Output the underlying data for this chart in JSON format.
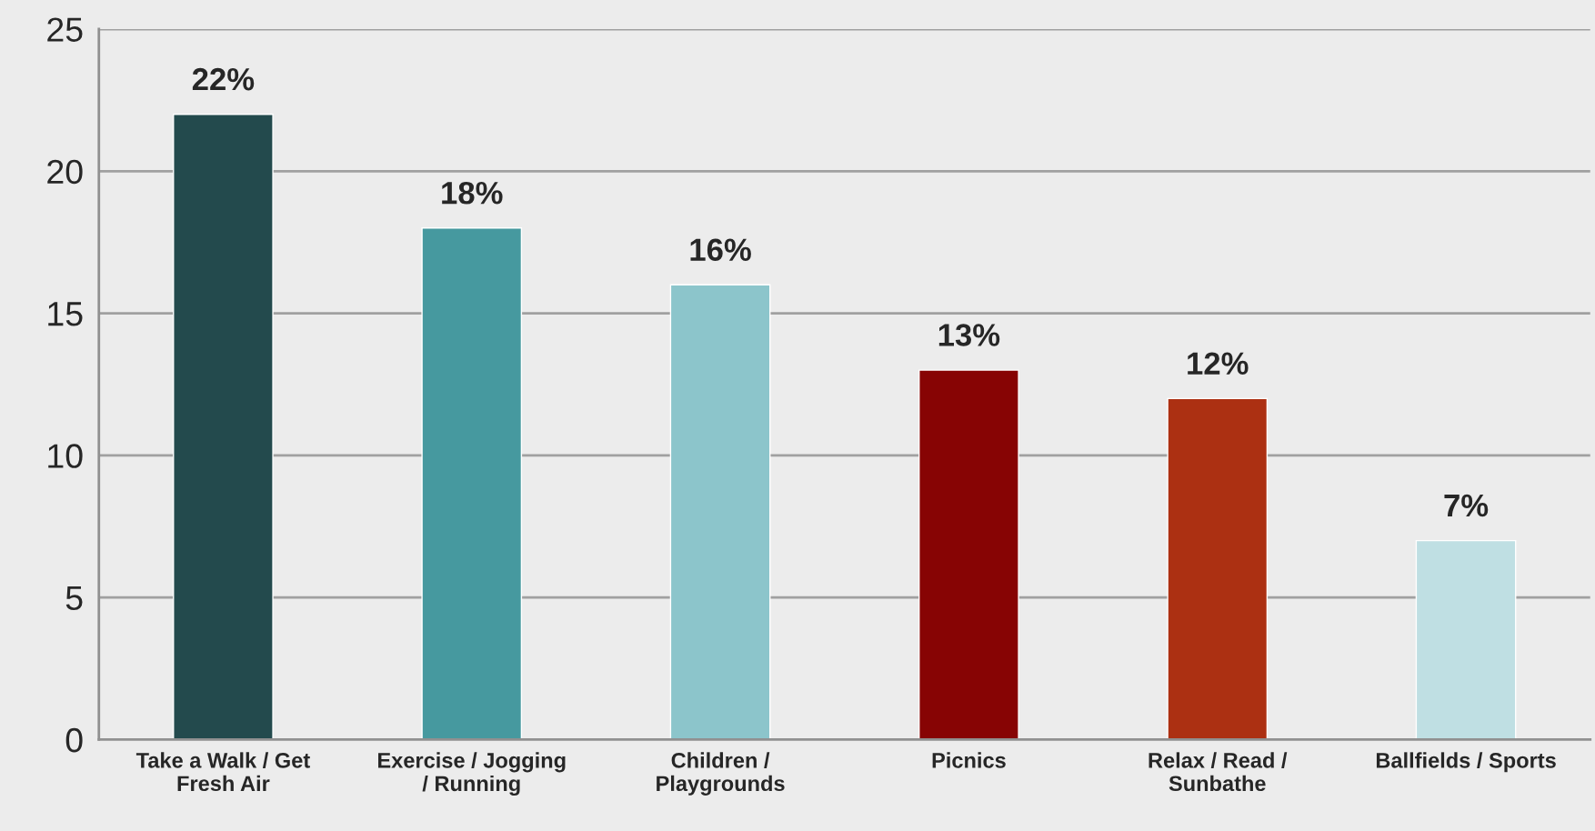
{
  "chart_data": {
    "type": "bar",
    "categories": [
      "Take a Walk / Get\nFresh Air",
      "Exercise / Jogging\n/ Running",
      "Children /\nPlaygrounds",
      "Picnics",
      "Relax / Read /\nSunbathe",
      "Ballfields / Sports"
    ],
    "values": [
      22,
      18,
      16,
      13,
      12,
      7
    ],
    "colors": [
      "#234a4d",
      "#46999f",
      "#8cc5cb",
      "#870404",
      "#ac3012",
      "#bfdfe3"
    ],
    "value_labels": [
      "22%",
      "18%",
      "16%",
      "13%",
      "12%",
      "7%"
    ],
    "ylim": [
      0,
      25
    ],
    "yticks": [
      0,
      5,
      10,
      15,
      20,
      25
    ],
    "grid": "y",
    "legend": false
  }
}
